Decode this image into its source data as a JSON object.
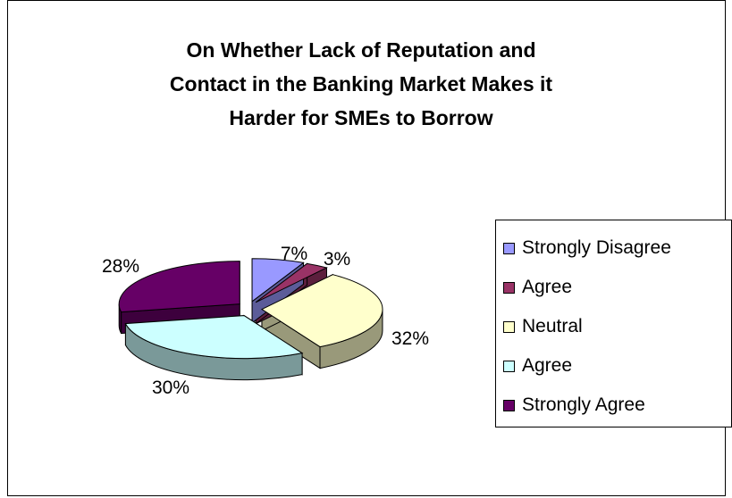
{
  "chart_data": {
    "type": "pie",
    "title": "On Whether Lack of Reputation and\nContact in the Banking Market Makes it\nHarder for SMEs to Borrow",
    "slices": [
      {
        "label": "Strongly Disagree",
        "value": 7,
        "value_label": "7%",
        "color": "#9999ff",
        "side_color": "#5c5c99"
      },
      {
        "label": "Agree",
        "value": 3,
        "value_label": "3%",
        "color": "#993366",
        "side_color": "#5c1f3d"
      },
      {
        "label": "Neutral",
        "value": 32,
        "value_label": "32%",
        "color": "#ffffcc",
        "side_color": "#99997a"
      },
      {
        "label": "Agree",
        "value": 30,
        "value_label": "30%",
        "color": "#ccffff",
        "side_color": "#7a9999"
      },
      {
        "label": "Strongly Agree",
        "value": 28,
        "value_label": "28%",
        "color": "#660066",
        "side_color": "#3d003d"
      }
    ],
    "legend_position": "right",
    "style": "3d-exploded"
  }
}
